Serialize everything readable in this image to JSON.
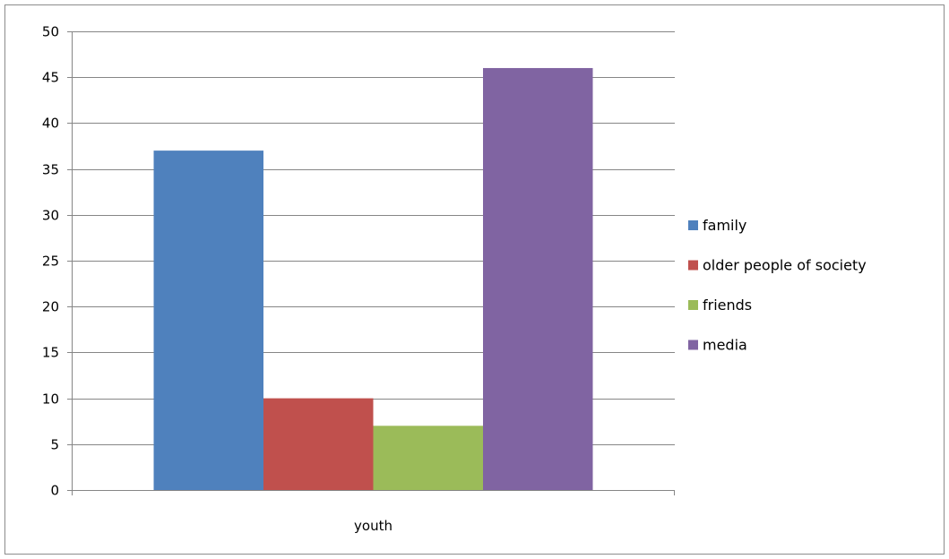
{
  "chart_data": {
    "type": "bar",
    "categories": [
      "youth"
    ],
    "series": [
      {
        "name": "family",
        "values": [
          37
        ],
        "color": "#4f81bd"
      },
      {
        "name": "older people of society",
        "values": [
          10
        ],
        "color": "#c0504d"
      },
      {
        "name": "friends",
        "values": [
          7
        ],
        "color": "#9bbb59"
      },
      {
        "name": "media",
        "values": [
          46
        ],
        "color": "#8064a2"
      }
    ],
    "title": "",
    "xlabel": "",
    "ylabel": "",
    "ylim": [
      0,
      50
    ],
    "yticks": [
      "0",
      "5",
      "10",
      "15",
      "20",
      "25",
      "30",
      "35",
      "40",
      "45",
      "50"
    ],
    "grid": true,
    "legend_position": "right"
  }
}
